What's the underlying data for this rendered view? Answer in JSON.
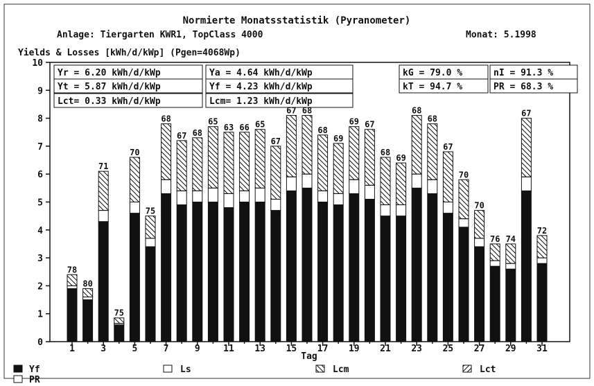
{
  "header": {
    "title": "Normierte Monatsstatistik  (Pyranometer)",
    "plant": "Anlage: Tiergarten KWR1, TopClass 4000",
    "month": "Monat: 5.1998"
  },
  "stats": {
    "yr": "Yr = 6.20 kWh/d/kWp",
    "ya": "Ya = 4.64 kWh/d/kWp",
    "yt": "Yt = 5.87 kWh/d/kWp",
    "yf": "Yf = 4.23 kWh/d/kWp",
    "lct": "Lct= 0.33 kWh/d/kWp",
    "lcm": "Lcm= 1.23 kWh/d/kWp",
    "kg": "kG = 79.0 %",
    "ni": "nI = 91.3 %",
    "kt": "kT = 94.7 %",
    "pr": "PR = 68.3 %"
  },
  "colors": {
    "yf": "#111111",
    "ls": "#ffffff",
    "hatch": "#111111",
    "axis": "#111111"
  },
  "chart_data": {
    "type": "bar",
    "stacked": true,
    "title": "Normierte Monatsstatistik  (Pyranometer)",
    "ylabel": "Yields & Losses [kWh/d/kWp] (Pgen=4068Wp)",
    "xlabel": "Tag",
    "ylim": [
      0,
      10
    ],
    "yticks": [
      "0",
      "1",
      "2",
      "3",
      "4",
      "5",
      "6",
      "7",
      "8",
      "9",
      "10"
    ],
    "xticks": [
      "1",
      "3",
      "5",
      "7",
      "9",
      "11",
      "13",
      "15",
      "17",
      "19",
      "21",
      "23",
      "25",
      "27",
      "29",
      "31"
    ],
    "days": [
      1,
      2,
      3,
      4,
      5,
      6,
      7,
      8,
      9,
      10,
      11,
      12,
      13,
      14,
      15,
      16,
      17,
      18,
      19,
      20,
      21,
      22,
      23,
      24,
      25,
      26,
      27,
      28,
      29,
      30,
      31
    ],
    "pr_labels": [
      "78",
      "80",
      "71",
      "75",
      "70",
      "75",
      "68",
      "67",
      "68",
      "65",
      "63",
      "66",
      "65",
      "67",
      "67",
      "68",
      "68",
      "69",
      "69",
      "67",
      "68",
      "69",
      "68",
      "68",
      "67",
      "70",
      "70",
      "76",
      "74",
      "67",
      "72"
    ],
    "series": [
      {
        "name": "Yf",
        "pattern": "solid",
        "values": [
          1.9,
          1.5,
          4.3,
          0.6,
          4.6,
          3.4,
          5.3,
          4.9,
          5.0,
          5.0,
          4.8,
          5.0,
          5.0,
          4.7,
          5.4,
          5.5,
          5.0,
          4.9,
          5.3,
          5.1,
          4.5,
          4.5,
          5.5,
          5.3,
          4.6,
          4.1,
          3.4,
          2.7,
          2.6,
          5.4,
          2.8
        ]
      },
      {
        "name": "Ls",
        "pattern": "empty",
        "values": [
          0.1,
          0.1,
          0.4,
          0.05,
          0.4,
          0.3,
          0.5,
          0.5,
          0.4,
          0.5,
          0.5,
          0.4,
          0.5,
          0.4,
          0.5,
          0.5,
          0.4,
          0.4,
          0.5,
          0.5,
          0.4,
          0.4,
          0.5,
          0.5,
          0.4,
          0.3,
          0.3,
          0.2,
          0.2,
          0.5,
          0.2
        ]
      },
      {
        "name": "Lcm",
        "pattern": "cross",
        "values": [
          0.4,
          0.3,
          1.4,
          0.2,
          1.6,
          0.8,
          2.0,
          1.8,
          1.9,
          2.2,
          2.2,
          2.1,
          2.1,
          1.9,
          2.2,
          2.1,
          2.0,
          1.8,
          1.9,
          2.0,
          1.7,
          1.5,
          2.1,
          2.0,
          1.8,
          1.4,
          1.0,
          0.6,
          0.7,
          2.1,
          0.8
        ]
      },
      {
        "name": "Lct",
        "pattern": "diagonal",
        "values": [
          0.0,
          0.0,
          0.0,
          0.0,
          0.0,
          0.0,
          0.0,
          0.0,
          0.0,
          0.0,
          0.0,
          0.0,
          0.0,
          0.0,
          0.0,
          0.0,
          0.0,
          0.0,
          0.0,
          0.0,
          0.0,
          0.0,
          0.0,
          0.0,
          0.0,
          0.0,
          0.0,
          0.0,
          0.0,
          0.0,
          0.0
        ]
      }
    ],
    "legend": [
      {
        "key": "yf",
        "label": "Yf"
      },
      {
        "key": "ls",
        "label": "Ls"
      },
      {
        "key": "lcm",
        "label": "Lcm"
      },
      {
        "key": "lct",
        "label": "Lct"
      },
      {
        "key": "pr",
        "label": "PR"
      }
    ]
  }
}
